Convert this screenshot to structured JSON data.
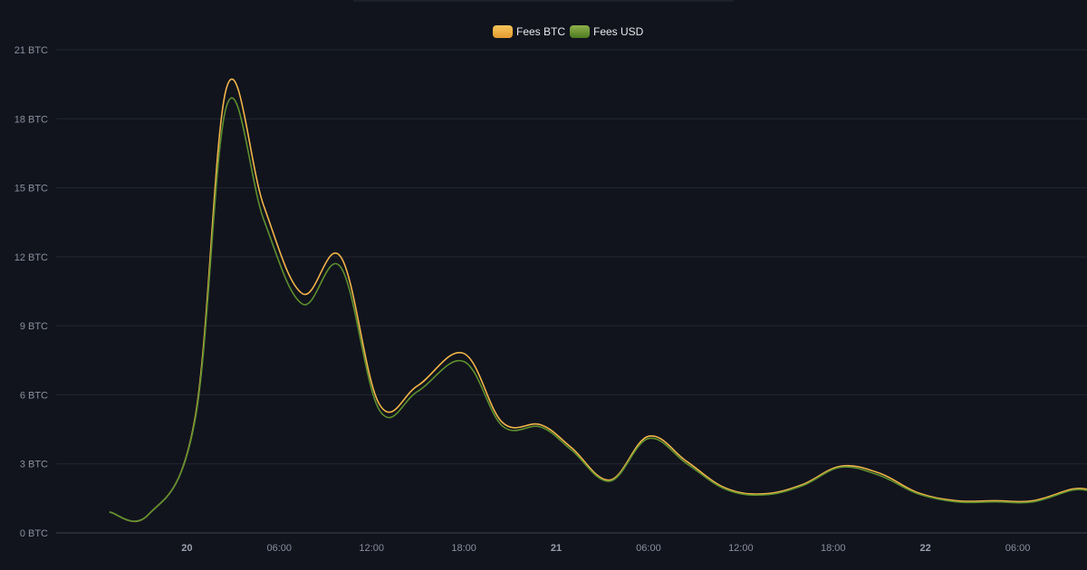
{
  "chart_data": {
    "type": "line",
    "ylim": [
      0,
      21
    ],
    "y_unit": "BTC",
    "y_ticks": [
      0,
      3,
      6,
      9,
      12,
      15,
      18,
      21
    ],
    "y_tick_labels": [
      "0 BTC",
      "3 BTC",
      "6 BTC",
      "9 BTC",
      "12 BTC",
      "15 BTC",
      "18 BTC",
      "21 BTC"
    ],
    "x_range_hours": [
      -8.5,
      58.5
    ],
    "x_ticks": [
      {
        "hour": 0,
        "label": "20",
        "major": true
      },
      {
        "hour": 6,
        "label": "06:00",
        "major": false
      },
      {
        "hour": 12,
        "label": "12:00",
        "major": false
      },
      {
        "hour": 18,
        "label": "18:00",
        "major": false
      },
      {
        "hour": 24,
        "label": "21",
        "major": true
      },
      {
        "hour": 30,
        "label": "06:00",
        "major": false
      },
      {
        "hour": 36,
        "label": "12:00",
        "major": false
      },
      {
        "hour": 42,
        "label": "18:00",
        "major": false
      },
      {
        "hour": 48,
        "label": "22",
        "major": true
      },
      {
        "hour": 54,
        "label": "06:00",
        "major": false
      }
    ],
    "grid": true,
    "legend_position": "top-center",
    "series": [
      {
        "name": "Fees BTC",
        "color": "#f2b54a",
        "x": [
          -5,
          -2.5,
          0.5,
          2.6,
          5,
          7.5,
          10,
          12.5,
          15,
          18,
          20.5,
          23,
          25,
          27.5,
          30,
          32.5,
          35,
          37.5,
          40,
          42.5,
          45,
          47.5,
          50,
          52.5,
          55,
          57.5,
          58.5
        ],
        "y": [
          0.9,
          0.8,
          4.9,
          19.4,
          14.2,
          10.4,
          12.0,
          5.6,
          6.4,
          7.8,
          4.8,
          4.7,
          3.7,
          2.3,
          4.2,
          3.1,
          1.95,
          1.7,
          2.1,
          2.9,
          2.6,
          1.75,
          1.4,
          1.4,
          1.4,
          1.9,
          1.9
        ]
      },
      {
        "name": "Fees USD",
        "color": "#5e8f2e",
        "x": [
          -5,
          -2.5,
          0.5,
          2.6,
          5,
          7.5,
          10,
          12.5,
          15,
          18,
          20.5,
          23,
          25,
          27.5,
          30,
          32.5,
          35,
          37.5,
          40,
          42.5,
          45,
          47.5,
          50,
          52.5,
          55,
          57.5,
          58.5
        ],
        "y": [
          0.9,
          0.8,
          4.8,
          18.6,
          13.6,
          9.95,
          11.55,
          5.35,
          6.15,
          7.45,
          4.65,
          4.6,
          3.6,
          2.25,
          4.1,
          3.0,
          1.9,
          1.65,
          2.05,
          2.85,
          2.5,
          1.7,
          1.35,
          1.35,
          1.35,
          1.85,
          1.85
        ]
      }
    ]
  }
}
